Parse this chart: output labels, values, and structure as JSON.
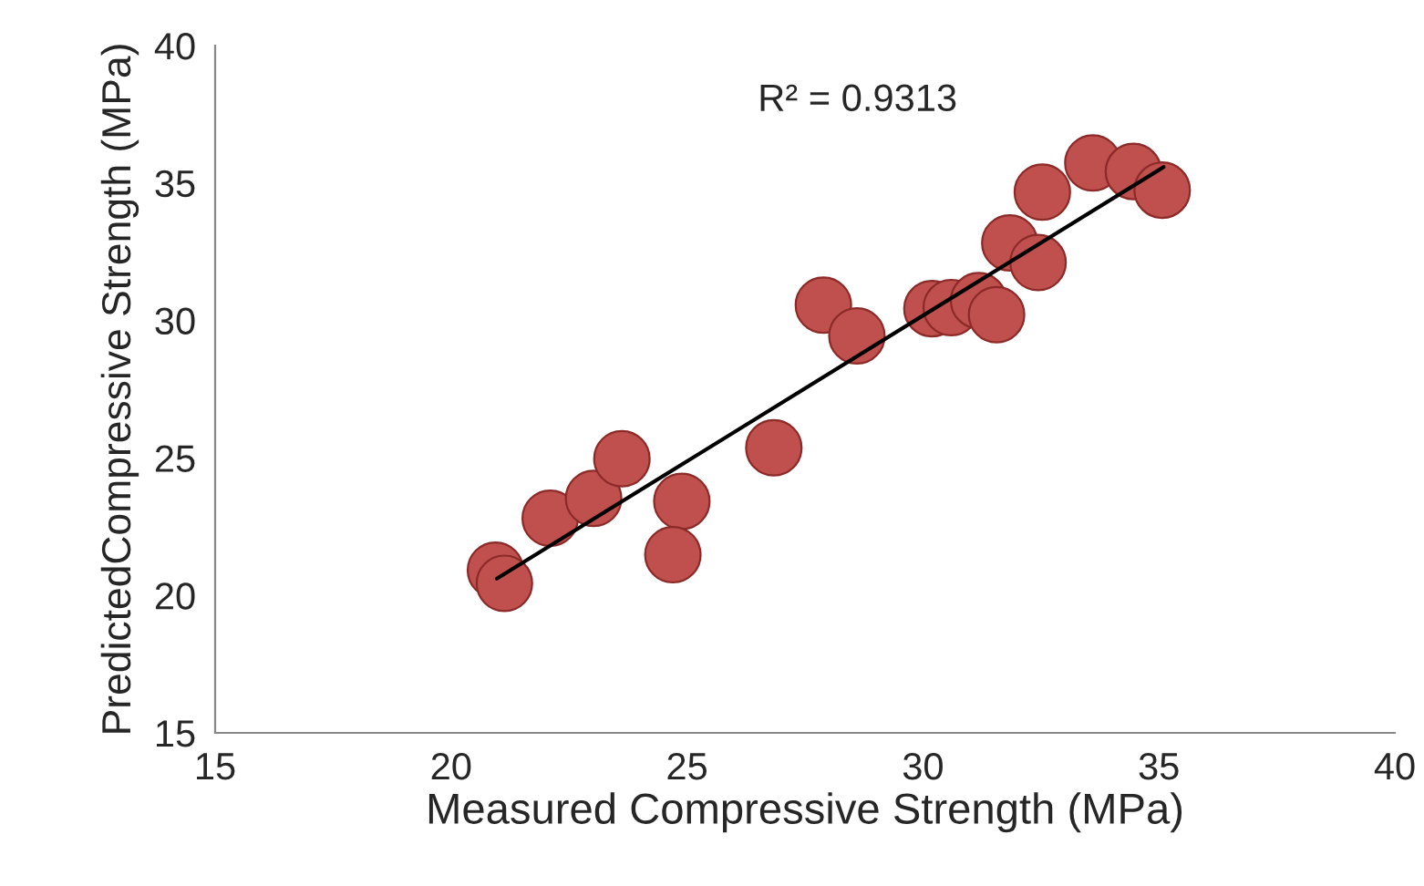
{
  "chart_data": {
    "type": "scatter",
    "xlabel": "Measured Compressive Strength (MPa)",
    "ylabel": "PredictedCompressive Strength (MPa)",
    "xlim": [
      15,
      40
    ],
    "ylim": [
      15,
      40
    ],
    "xticks": [
      15,
      20,
      25,
      30,
      35,
      40
    ],
    "yticks": [
      15,
      20,
      25,
      30,
      35,
      40
    ],
    "grid": false,
    "marker": "circle",
    "annotations": [
      "R² = 0.9313"
    ],
    "series": [
      {
        "color": "#c0504d",
        "x": [
          20.94,
          21.13,
          22.1,
          23.02,
          23.62,
          24.89,
          24.7,
          26.84,
          27.89,
          28.6,
          30.19,
          30.6,
          31.18,
          31.56,
          31.84,
          32.44,
          32.53,
          33.6,
          34.46,
          35.07
        ],
        "values": [
          20.92,
          20.44,
          22.81,
          23.53,
          24.97,
          23.42,
          21.48,
          25.37,
          30.56,
          29.44,
          30.43,
          30.47,
          30.72,
          30.21,
          32.82,
          32.11,
          34.67,
          35.73,
          35.42,
          34.74
        ]
      },
      {
        "type": "line",
        "marker": "none",
        "color": "#000000",
        "x": [
          20.97,
          35.1
        ],
        "values": [
          20.61,
          35.58
        ]
      }
    ]
  }
}
